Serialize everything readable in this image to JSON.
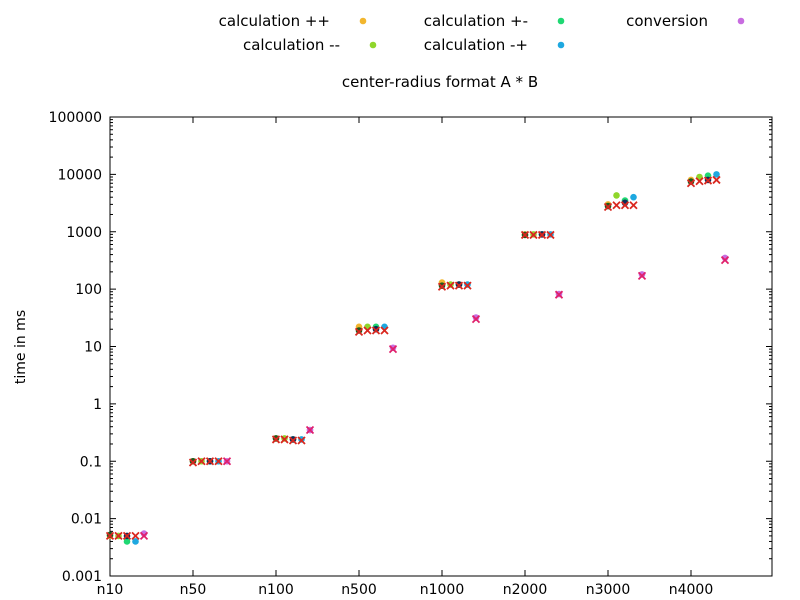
{
  "chart_data": {
    "type": "scatter",
    "title": "center-radius format A * B",
    "xlabel": "",
    "ylabel": "time in ms",
    "y_scale": "log",
    "ylim": [
      0.001,
      100000
    ],
    "y_ticks": [
      "0.001",
      "0.01",
      "0.1",
      "1",
      "10",
      "100",
      "1000",
      "10000",
      "100000"
    ],
    "categories": [
      "n10",
      "n50",
      "n100",
      "n500",
      "n1000",
      "n2000",
      "n3000",
      "n4000"
    ],
    "grid": false,
    "legend_position": "top",
    "series": [
      {
        "name": "calculation ++",
        "color": "#f2b62e",
        "marker": "circle",
        "offset": 0,
        "values": [
          0.005,
          0.1,
          0.25,
          22,
          130,
          900,
          3000,
          8000
        ]
      },
      {
        "name": "calculation --",
        "color": "#8fd62b",
        "marker": "circle",
        "offset": 1,
        "values": [
          0.005,
          0.1,
          0.25,
          22,
          120,
          900,
          4300,
          9000
        ]
      },
      {
        "name": "calculation +-",
        "color": "#1fd873",
        "marker": "circle",
        "offset": 2,
        "values": [
          0.004,
          0.1,
          0.24,
          22,
          120,
          900,
          3500,
          9500
        ]
      },
      {
        "name": "calculation -+",
        "color": "#1ea8e0",
        "marker": "circle",
        "offset": 3,
        "values": [
          0.004,
          0.1,
          0.24,
          22,
          120,
          900,
          4000,
          10000
        ]
      },
      {
        "name": "conversion",
        "color": "#c86ce0",
        "marker": "circle",
        "offset": 4,
        "values": [
          0.0055,
          0.1,
          0.35,
          9.5,
          32,
          82,
          180,
          350
        ]
      },
      {
        "name": "",
        "color": "#1e5a1e",
        "marker": "circle",
        "offset": 0,
        "values": [
          0.0052,
          0.1,
          0.25,
          19,
          115,
          880,
          2800,
          7500
        ]
      },
      {
        "name": "",
        "color": "#0e2d5a",
        "marker": "circle",
        "offset": 2,
        "values": [
          0.005,
          0.1,
          0.24,
          20,
          120,
          900,
          3200,
          8000
        ]
      },
      {
        "name": "",
        "color": "#d9271f",
        "marker": "cross",
        "offset": 0,
        "values": [
          0.005,
          0.095,
          0.24,
          18,
          110,
          880,
          2700,
          7000
        ]
      },
      {
        "name": "",
        "color": "#d9271f",
        "marker": "cross",
        "offset": 1,
        "values": [
          0.005,
          0.1,
          0.24,
          19,
          115,
          880,
          2900,
          7600
        ]
      },
      {
        "name": "",
        "color": "#d9271f",
        "marker": "cross",
        "offset": 2,
        "values": [
          0.005,
          0.1,
          0.23,
          19,
          115,
          880,
          2900,
          7800
        ]
      },
      {
        "name": "",
        "color": "#d9271f",
        "marker": "cross",
        "offset": 3,
        "values": [
          0.005,
          0.1,
          0.23,
          19,
          115,
          880,
          2900,
          8000
        ]
      },
      {
        "name": "",
        "color": "#e0206a",
        "marker": "cross",
        "offset": 4,
        "values": [
          0.005,
          0.1,
          0.35,
          9,
          30,
          80,
          170,
          320
        ]
      }
    ]
  }
}
